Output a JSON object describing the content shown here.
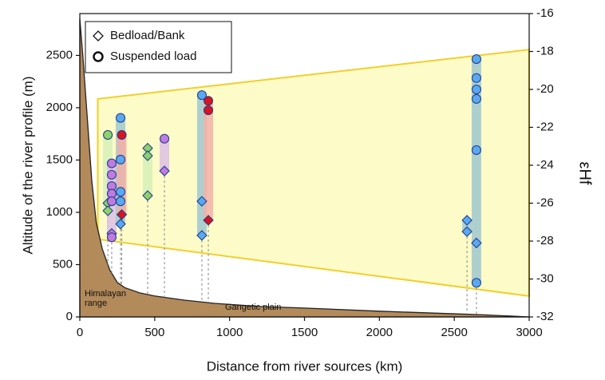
{
  "chart_data": {
    "type": "scatter",
    "x_label": "Distance from river sources (km)",
    "y_label": "Altitude of the river profile (m)",
    "y2_label": "εHf",
    "xlim": [
      0,
      3000
    ],
    "xticks": [
      0,
      500,
      1000,
      1500,
      2000,
      2500,
      3000
    ],
    "ylim": [
      0,
      2900
    ],
    "yticks": [
      0,
      500,
      1000,
      1500,
      2000,
      2500
    ],
    "y2lim": [
      -32,
      -16
    ],
    "y2ticks": [
      -32,
      -30,
      -28,
      -26,
      -24,
      -22,
      -20,
      -18,
      -16
    ],
    "legend": [
      {
        "label": "Bedload/Bank",
        "marker": "diamond"
      },
      {
        "label": "Suspended load",
        "marker": "circle"
      }
    ],
    "annotations": [
      "Himalayan",
      "range",
      "Gangetic plain"
    ],
    "profile": {
      "color": "#b38a5a",
      "x": [
        0,
        20,
        50,
        80,
        110,
        150,
        200,
        250,
        300,
        400,
        500,
        700,
        900,
        1200,
        1500,
        2000,
        2500,
        2700,
        3000
      ],
      "altitude": [
        2850,
        2500,
        1900,
        1300,
        900,
        650,
        450,
        330,
        280,
        230,
        200,
        160,
        130,
        100,
        85,
        55,
        30,
        20,
        0
      ]
    },
    "band": {
      "color": "#fdfbc8",
      "edge": "#f2cf2a",
      "x": [
        120,
        3000
      ],
      "upper": [
        -20.5,
        -17.9
      ],
      "lower": [
        -27.9,
        -30.9
      ]
    },
    "groups": [
      {
        "x": 187,
        "color": "#8fd16a",
        "bar_color": "#d7f0b8",
        "bedload": [
          -26.0,
          -26.4
        ],
        "suspended": [
          -22.4
        ]
      },
      {
        "x": 213,
        "color": "#c07ae0",
        "bar_color": "#dcc0e6",
        "bedload": [
          -27.6
        ],
        "suspended": [
          -23.9,
          -24.5,
          -25.1,
          -25.5,
          -25.9,
          -27.8
        ]
      },
      {
        "x": 272,
        "color": "#5ba8f0",
        "bar_color": "#9fc8d0",
        "bedload": [
          -27.1
        ],
        "suspended": [
          -21.5,
          -23.7,
          -25.4,
          -25.9
        ]
      },
      {
        "x": 280,
        "color": "#d9141e",
        "bar_color": "#f2b0a8",
        "bedload": [
          -26.6
        ],
        "suspended": [
          -22.4
        ]
      },
      {
        "x": 453,
        "color": "#8fd16a",
        "bar_color": "#d7f0b8",
        "bedload": [
          -23.1,
          -23.5,
          -25.6
        ],
        "suspended": []
      },
      {
        "x": 565,
        "color": "#c07ae0",
        "bar_color": "#dcc0e6",
        "bedload": [
          -24.3
        ],
        "suspended": [
          -22.6
        ]
      },
      {
        "x": 815,
        "color": "#5ba8f0",
        "bar_color": "#9fc8d0",
        "bedload": [
          -25.9,
          -27.7
        ],
        "suspended": [
          -20.3
        ]
      },
      {
        "x": 858,
        "color": "#d9141e",
        "bar_color": "#f2b0a8",
        "bedload": [
          -26.9
        ],
        "suspended": [
          -20.6,
          -21.1
        ]
      },
      {
        "x": 2585,
        "color": "#5ba8f0",
        "bar_color": "#9fc8d0",
        "bedload": [
          -26.9,
          -27.5
        ],
        "suspended": []
      },
      {
        "x": 2648,
        "color": "#5ba8f0",
        "bar_color": "#9fc8d0",
        "bedload": [
          -28.1
        ],
        "suspended": [
          -18.4,
          -19.4,
          -20.0,
          -20.5,
          -23.2,
          -30.2
        ]
      }
    ]
  }
}
